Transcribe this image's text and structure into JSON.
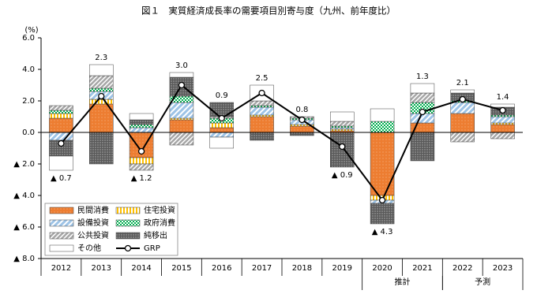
{
  "chart_data": {
    "type": "bar",
    "title": "図１　実質経済成長率の需要項目別寄与度（九州、前年度比）",
    "y_unit": "(%)",
    "categories": [
      "2012",
      "2013",
      "2014",
      "2015",
      "2016",
      "2017",
      "2018",
      "2019",
      "2020",
      "2021",
      "2022",
      "2023"
    ],
    "groups": [
      {
        "label": "推計",
        "members": [
          "2020",
          "2021"
        ]
      },
      {
        "label": "予測",
        "members": [
          "2022",
          "2023"
        ]
      }
    ],
    "ylim": [
      -8,
      6
    ],
    "yticks": [
      {
        "value": 6,
        "label": "6.0"
      },
      {
        "value": 4,
        "label": "4.0"
      },
      {
        "value": 2,
        "label": "2.0"
      },
      {
        "value": 0,
        "label": "0.0"
      },
      {
        "value": -2,
        "label": "▲ 2.0"
      },
      {
        "value": -4,
        "label": "▲ 4.0"
      },
      {
        "value": -6,
        "label": "▲ 6.0"
      },
      {
        "value": -8,
        "label": "▲ 8.0"
      }
    ],
    "series": [
      {
        "name": "民間消費",
        "color": "#ed7d31",
        "values": [
          0.9,
          1.8,
          -1.6,
          0.8,
          0.3,
          1.0,
          0.4,
          0.1,
          -4.0,
          0.6,
          1.2,
          0.5
        ]
      },
      {
        "name": "住宅投資",
        "color": "#ffc000",
        "values": [
          0.3,
          0.3,
          -0.4,
          0.1,
          0.3,
          0.1,
          0.1,
          0.1,
          -0.3,
          0,
          0,
          0.1
        ]
      },
      {
        "name": "設備投資",
        "color": "#9dc3e6",
        "values": [
          -0.5,
          0.5,
          0.3,
          1.0,
          -0.3,
          0.5,
          0.3,
          0.1,
          -0.2,
          0.6,
          0.7,
          0.4
        ]
      },
      {
        "name": "政府消費",
        "color": "#00b050",
        "values": [
          0.2,
          0.2,
          0.2,
          0.4,
          0.3,
          0.1,
          0.1,
          0.1,
          0.7,
          0.7,
          0.1,
          0.1
        ]
      },
      {
        "name": "公共投資",
        "color": "#a6a6a6",
        "values": [
          0.3,
          0.8,
          -0.4,
          -0.8,
          0.1,
          0.3,
          0.1,
          0.3,
          0,
          0.6,
          -0.6,
          -0.4
        ]
      },
      {
        "name": "純移出",
        "color": "#595959",
        "values": [
          -1.0,
          -2.0,
          0.3,
          1.2,
          0.9,
          -0.5,
          -0.2,
          -2.2,
          -1.3,
          -1.8,
          0.5,
          0.5
        ]
      },
      {
        "name": "その他",
        "color": "#ffffff",
        "values": [
          -0.9,
          0.7,
          0.4,
          0.3,
          -0.7,
          1.0,
          0,
          0.6,
          0.8,
          0.6,
          0.2,
          0.2
        ]
      }
    ],
    "line": {
      "name": "GRP",
      "color": "#000000",
      "values": [
        -0.7,
        2.3,
        -1.2,
        3.0,
        0.9,
        2.5,
        0.8,
        -0.9,
        -4.3,
        1.3,
        2.1,
        1.4
      ],
      "value_labels": [
        "▲ 0.7",
        "2.3",
        "▲ 1.2",
        "3.0",
        "0.9",
        "2.5",
        "0.8",
        "▲ 0.9",
        "▲ 4.3",
        "1.3",
        "2.1",
        "1.4"
      ]
    }
  }
}
